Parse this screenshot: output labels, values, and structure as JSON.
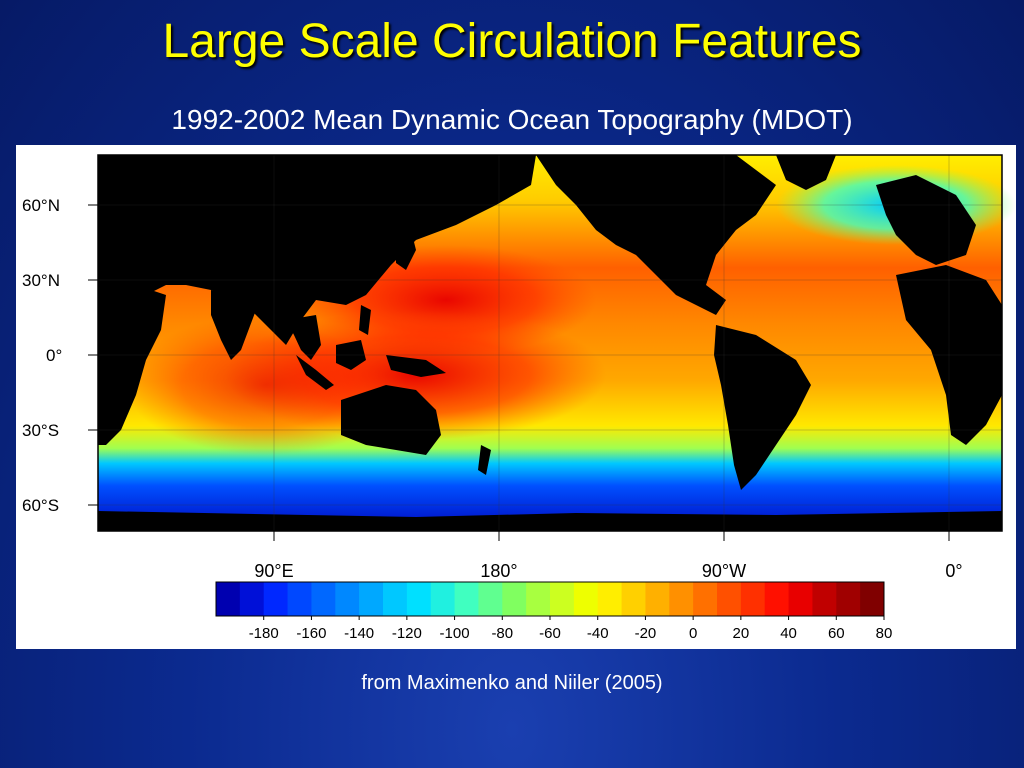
{
  "slide": {
    "title": "Large Scale Circulation Features",
    "subtitle": "1992-2002 Mean Dynamic Ocean Topography (MDOT)",
    "credit": "from Maximenko and Niiler (2005)"
  },
  "map": {
    "lat_ticks": [
      "60°N",
      "30°N",
      "0°",
      "30°S",
      "60°S"
    ],
    "lon_ticks": [
      "90°E",
      "180°",
      "90°W",
      "0°"
    ],
    "colorbar": {
      "tick_labels": [
        "-180",
        "-160",
        "-140",
        "-120",
        "-100",
        "-80",
        "-60",
        "-40",
        "-20",
        "0",
        "20",
        "40",
        "60",
        "80"
      ],
      "colors": [
        "#0000b0",
        "#0010d8",
        "#0028ff",
        "#0048ff",
        "#0068ff",
        "#0088ff",
        "#00a8ff",
        "#00c8ff",
        "#00e0ff",
        "#20f0e0",
        "#40ffc0",
        "#60ff90",
        "#80ff60",
        "#a8ff40",
        "#ccff20",
        "#eeff00",
        "#ffee00",
        "#ffd000",
        "#ffb000",
        "#ff9000",
        "#ff7000",
        "#ff5000",
        "#ff3000",
        "#ff1000",
        "#e80000",
        "#c00000",
        "#a00000",
        "#800000"
      ]
    },
    "land_color": "#000000"
  }
}
